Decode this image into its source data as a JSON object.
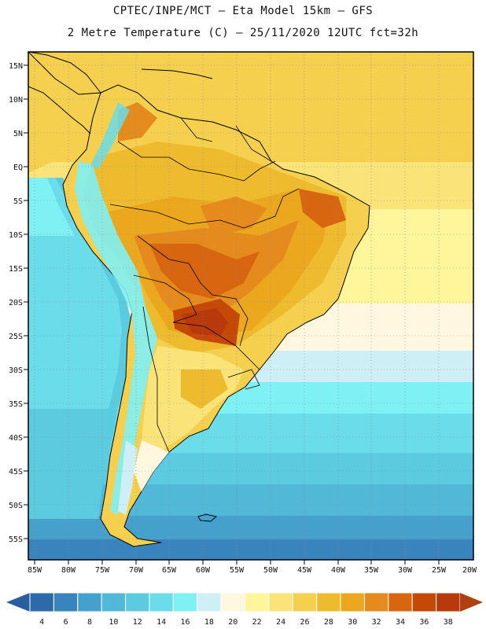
{
  "header": {
    "line1": "CPTEC/INPE/MCT –  Eta Model 15km – GFS",
    "line2": "2 Metre Temperature (C) – 25/11/2020 12UTC fct=32h"
  },
  "map": {
    "lat_labels": [
      "15N",
      "10N",
      "5N",
      "EQ",
      "5S",
      "10S",
      "15S",
      "20S",
      "25S",
      "30S",
      "35S",
      "40S",
      "45S",
      "50S",
      "55S"
    ],
    "lon_labels": [
      "85W",
      "80W",
      "75W",
      "70W",
      "65W",
      "60W",
      "55W",
      "50W",
      "45W",
      "40W",
      "35W",
      "30W",
      "25W",
      "20W"
    ]
  },
  "legend": {
    "values": [
      "4",
      "6",
      "8",
      "10",
      "12",
      "14",
      "16",
      "18",
      "20",
      "22",
      "24",
      "26",
      "28",
      "30",
      "32",
      "34",
      "36",
      "38"
    ],
    "colors": [
      "#2c6aa8",
      "#3a84bd",
      "#45a0cc",
      "#52b8d8",
      "#5ccbe0",
      "#6adcea",
      "#7ff0f4",
      "#cfeff6",
      "#fff7e0",
      "#fff59a",
      "#fae47a",
      "#f5d04e",
      "#efbb2e",
      "#eba81e",
      "#e58a1c",
      "#d8650f",
      "#c44806",
      "#b83a0c"
    ],
    "low_color": "#2a5f9f",
    "high_color": "#b0400f"
  }
}
